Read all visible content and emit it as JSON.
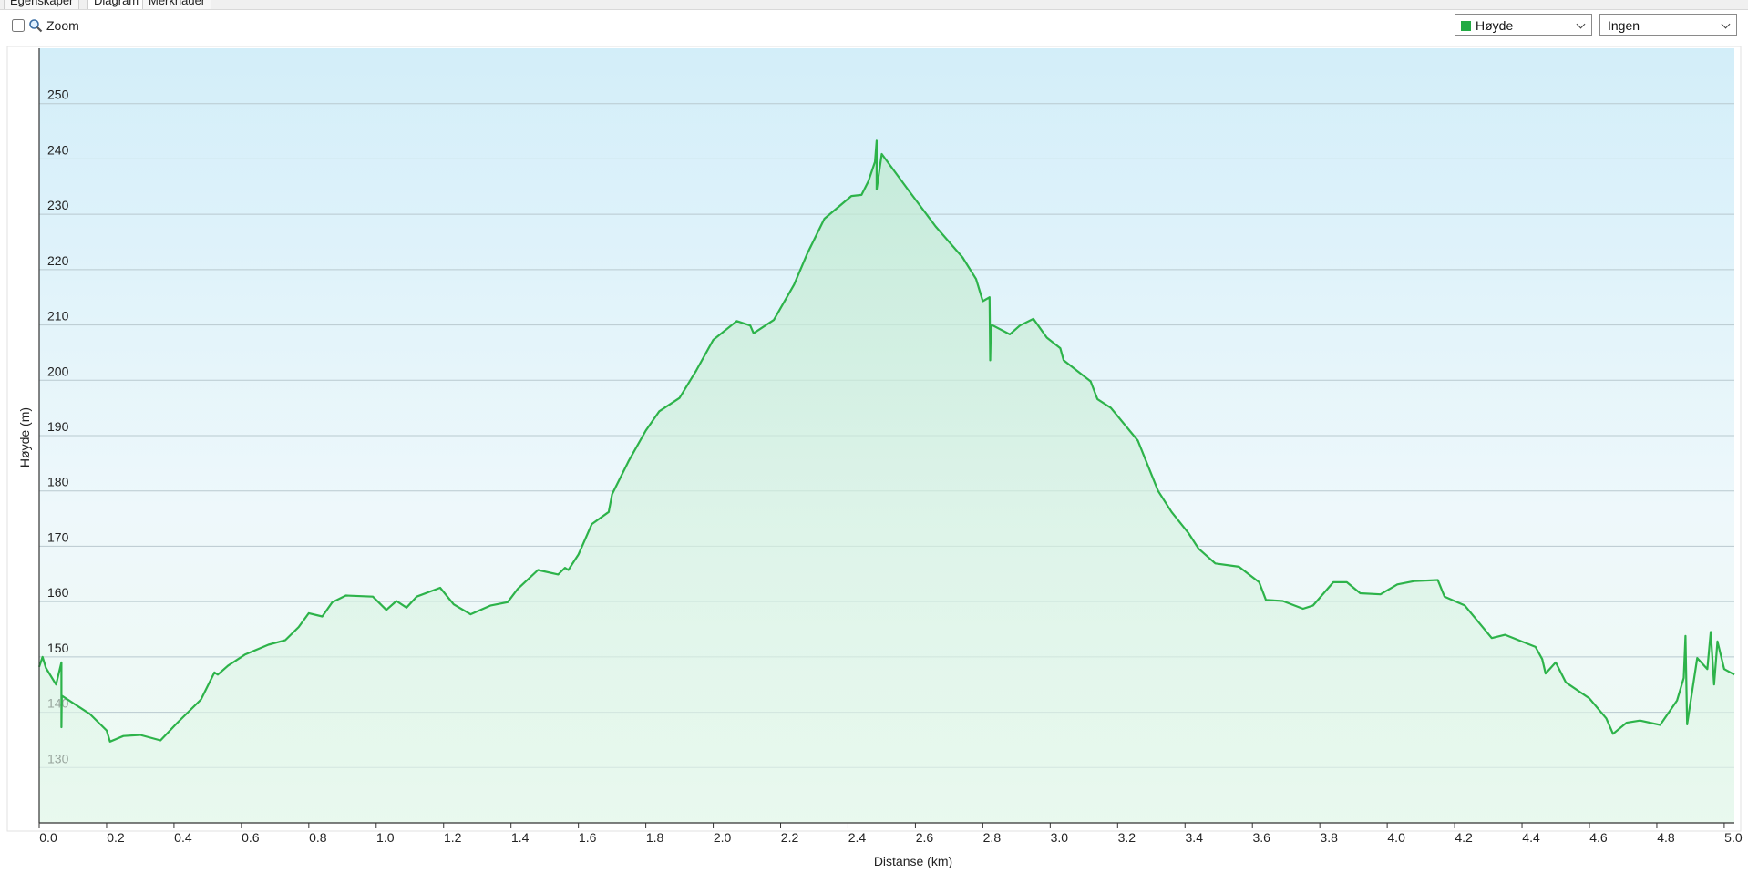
{
  "tabs": [
    "Egenskaper",
    "Diagram",
    "Merknader"
  ],
  "toolbar": {
    "zoom_label": "Zoom",
    "series_select": "Høyde",
    "secondary_select": "Ingen"
  },
  "chart_data": {
    "type": "area",
    "x_label": "Distanse  (km)",
    "y_label": "Høyde (m)",
    "color": "#2db34a",
    "grid": true,
    "x": [
      0.0,
      0.01,
      0.02,
      0.05,
      0.066,
      0.066,
      0.067,
      0.15,
      0.2,
      0.21,
      0.25,
      0.3,
      0.36,
      0.41,
      0.48,
      0.52,
      0.53,
      0.56,
      0.61,
      0.68,
      0.73,
      0.77,
      0.8,
      0.84,
      0.87,
      0.91,
      0.99,
      1.03,
      1.06,
      1.09,
      1.12,
      1.19,
      1.23,
      1.28,
      1.34,
      1.39,
      1.42,
      1.48,
      1.54,
      1.56,
      1.57,
      1.6,
      1.64,
      1.69,
      1.7,
      1.75,
      1.8,
      1.84,
      1.9,
      1.95,
      2.0,
      2.07,
      2.11,
      2.12,
      2.18,
      2.24,
      2.28,
      2.33,
      2.41,
      2.44,
      2.46,
      2.48,
      2.485,
      2.485,
      2.5,
      2.58,
      2.66,
      2.74,
      2.78,
      2.8,
      2.82,
      2.822,
      2.824,
      2.83,
      2.88,
      2.91,
      2.95,
      2.99,
      3.03,
      3.04,
      3.12,
      3.14,
      3.18,
      3.26,
      3.32,
      3.36,
      3.41,
      3.44,
      3.49,
      3.56,
      3.62,
      3.64,
      3.69,
      3.75,
      3.78,
      3.84,
      3.88,
      3.92,
      3.98,
      4.03,
      4.08,
      4.15,
      4.17,
      4.23,
      4.31,
      4.35,
      4.44,
      4.46,
      4.47,
      4.5,
      4.53,
      4.6,
      4.65,
      4.67,
      4.71,
      4.75,
      4.81,
      4.86,
      4.88,
      4.885,
      4.89,
      4.92,
      4.95,
      4.96,
      4.97,
      4.98,
      5.0,
      5.03
    ],
    "values": [
      148.2,
      150.0,
      148.0,
      145.0,
      149.0,
      137.3,
      143.0,
      139.7,
      136.7,
      134.7,
      135.7,
      135.9,
      134.9,
      138.1,
      142.3,
      147.2,
      146.8,
      148.4,
      150.4,
      152.2,
      153.0,
      155.4,
      157.9,
      157.3,
      159.9,
      161.1,
      160.9,
      158.5,
      160.1,
      158.9,
      160.9,
      162.5,
      159.5,
      157.7,
      159.3,
      159.9,
      162.3,
      165.7,
      164.9,
      166.1,
      165.7,
      168.5,
      174.0,
      176.2,
      179.4,
      185.5,
      190.9,
      194.4,
      196.8,
      201.8,
      207.3,
      210.7,
      209.9,
      208.5,
      210.9,
      217.3,
      223.0,
      229.2,
      233.3,
      233.5,
      235.9,
      239.5,
      243.3,
      234.5,
      240.9,
      234.3,
      227.8,
      222.2,
      218.3,
      214.3,
      215.0,
      203.6,
      209.9,
      209.9,
      208.3,
      209.9,
      211.1,
      207.7,
      205.8,
      203.6,
      199.8,
      196.6,
      195.0,
      189.1,
      180.0,
      176.2,
      172.4,
      169.6,
      166.9,
      166.3,
      163.5,
      160.3,
      160.1,
      158.7,
      159.3,
      163.5,
      163.5,
      161.5,
      161.3,
      163.1,
      163.7,
      163.9,
      160.9,
      159.3,
      153.4,
      154.0,
      151.8,
      149.6,
      147.0,
      149.0,
      145.4,
      142.5,
      138.9,
      136.1,
      138.1,
      138.5,
      137.7,
      142.1,
      146.2,
      153.8,
      137.8,
      149.8,
      147.8,
      154.5,
      145.0,
      152.8,
      147.8,
      146.8
    ],
    "xlim": [
      0,
      5.03
    ],
    "ylim": [
      120,
      260
    ],
    "xticks": [
      {
        "value": 0,
        "label": "0.0"
      },
      0.2,
      0.4,
      0.6,
      0.8,
      {
        "value": 1,
        "label": "1.0"
      },
      1.2,
      1.4,
      1.6,
      1.8,
      {
        "value": 2,
        "label": "2.0"
      },
      2.2,
      2.4,
      2.6,
      2.8,
      {
        "value": 3,
        "label": "3.0"
      },
      3.2,
      3.4,
      3.6,
      3.8,
      {
        "value": 4,
        "label": "4.0"
      },
      4.2,
      4.4,
      4.6,
      4.8,
      {
        "value": 5,
        "label": "5.0"
      }
    ],
    "yticks": [
      130,
      140,
      150,
      160,
      170,
      180,
      190,
      200,
      210,
      220,
      230,
      240,
      250
    ]
  }
}
